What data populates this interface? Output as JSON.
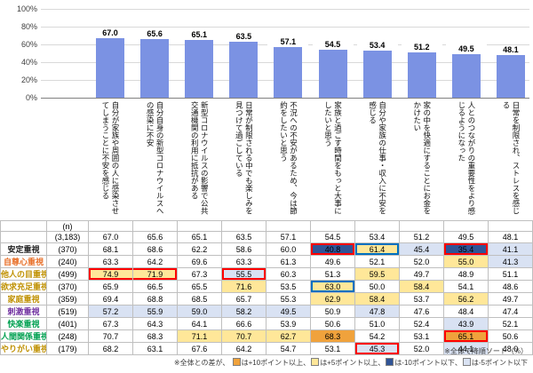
{
  "chart_data": {
    "type": "bar",
    "title": "",
    "categories": [
      "自分が家族や周囲の人に感染させてしまうことに不安を感じる",
      "自分自身の新型コロナウイルスへの感染に不安",
      "新型コロナウイルスの影響で公共交通機関の利用に抵抗がある",
      "日常が制限される中でも楽しみを見つけて過ごしている",
      "不況への不安があるため、今は節約をしたいと思う",
      "家族と過ごす時間をもっと大事にしたいと思う",
      "自分や家族の仕事・収入に不安を感じる",
      "家の中を快適にすることにお金をかけたい",
      "人とのつながりの重要性をより感じるようになった",
      "日常を制限され、ストレスを感じる"
    ],
    "values": [
      67.0,
      65.6,
      65.1,
      63.5,
      57.1,
      54.5,
      53.4,
      51.2,
      49.5,
      48.1
    ],
    "xlabel": "",
    "ylabel": "",
    "ylim": [
      0,
      100
    ],
    "yticks_percent": [
      100,
      80,
      60,
      40,
      20,
      0
    ],
    "grid": true,
    "legend": "none",
    "bar_color": "#7B92E3"
  },
  "table": {
    "n_header": "(n)",
    "rows": [
      {
        "label": "",
        "n": "(3,183)",
        "label_color": "#000000",
        "values": [
          67.0,
          65.6,
          65.1,
          63.5,
          57.1,
          54.5,
          53.4,
          51.2,
          49.5,
          48.1
        ]
      },
      {
        "label": "安定重視",
        "n": "(370)",
        "label_color": "#1F1F1F",
        "values": [
          68.1,
          68.6,
          62.2,
          58.6,
          60.0,
          40.8,
          61.4,
          45.4,
          35.4,
          41.1
        ]
      },
      {
        "label": "自尊心重視",
        "n": "(240)",
        "label_color": "#E8702A",
        "values": [
          63.3,
          64.2,
          69.6,
          63.3,
          61.3,
          49.6,
          52.1,
          52.0,
          55.0,
          41.3
        ]
      },
      {
        "label": "他人の目重視",
        "n": "(499)",
        "label_color": "#BF9000",
        "values": [
          74.9,
          71.9,
          67.3,
          55.5,
          60.3,
          51.3,
          59.5,
          49.7,
          48.9,
          51.1
        ]
      },
      {
        "label": "欲求充足重視",
        "n": "(370)",
        "label_color": "#BF9000",
        "values": [
          65.9,
          66.5,
          65.5,
          71.6,
          53.5,
          63.0,
          50.0,
          58.4,
          54.1,
          48.6
        ]
      },
      {
        "label": "家庭重視",
        "n": "(359)",
        "label_color": "#BF9000",
        "values": [
          69.4,
          68.8,
          68.5,
          65.7,
          55.3,
          62.9,
          58.4,
          53.7,
          56.2,
          49.7
        ]
      },
      {
        "label": "刺激重視",
        "n": "(519)",
        "label_color": "#7030A0",
        "values": [
          57.2,
          55.9,
          59.0,
          58.2,
          49.5,
          50.9,
          47.8,
          47.6,
          48.4,
          47.4
        ]
      },
      {
        "label": "快楽重視",
        "n": "(401)",
        "label_color": "#00A050",
        "values": [
          67.3,
          64.3,
          64.1,
          66.6,
          53.9,
          50.6,
          51.0,
          52.4,
          43.9,
          52.1
        ]
      },
      {
        "label": "人間関係重視",
        "n": "(248)",
        "label_color": "#00A050",
        "values": [
          70.7,
          68.3,
          71.1,
          70.7,
          62.7,
          68.3,
          54.2,
          53.1,
          65.1,
          50.6
        ]
      },
      {
        "label": "やりがい重視",
        "n": "(179)",
        "label_color": "#BF9000",
        "values": [
          68.2,
          63.1,
          67.6,
          64.2,
          54.7,
          53.1,
          45.3,
          52.0,
          44.1,
          48.0
        ]
      }
    ]
  },
  "highlight": {
    "p10_color": "#F0A23C",
    "p5_color": "#FFE799",
    "m10_color": "#305496",
    "m5_color": "#D9E2F3",
    "boxes": [
      {
        "row": 1,
        "col": 5,
        "span": 1,
        "color": "#FF0000"
      },
      {
        "row": 1,
        "col": 6,
        "span": 1,
        "color": "#0070C0"
      },
      {
        "row": 1,
        "col": 8,
        "span": 1,
        "color": "#FF0000"
      },
      {
        "row": 3,
        "col": 0,
        "span": 2,
        "color": "#FF0000"
      },
      {
        "row": 3,
        "col": 3,
        "span": 1,
        "color": "#FF0000"
      },
      {
        "row": 4,
        "col": 5,
        "span": 1,
        "color": "#0070C0"
      },
      {
        "row": 8,
        "col": 8,
        "span": 1,
        "color": "#FF0000"
      },
      {
        "row": 9,
        "col": 6,
        "span": 1,
        "color": "#FF0000"
      }
    ]
  },
  "notes": {
    "sort_note": "※全体で降順ソート（%）",
    "legend_prefix": "※全体との差が、",
    "legend_items": [
      {
        "swatch": "#F0A23C",
        "text": "は+10ポイント以上、"
      },
      {
        "swatch": "#FFE799",
        "text": "は+5ポイント以上、"
      },
      {
        "swatch": "#305496",
        "text": "は-10ポイント以下、"
      },
      {
        "swatch": "#D9E2F3",
        "text": "は-5ポイント以下"
      }
    ]
  }
}
